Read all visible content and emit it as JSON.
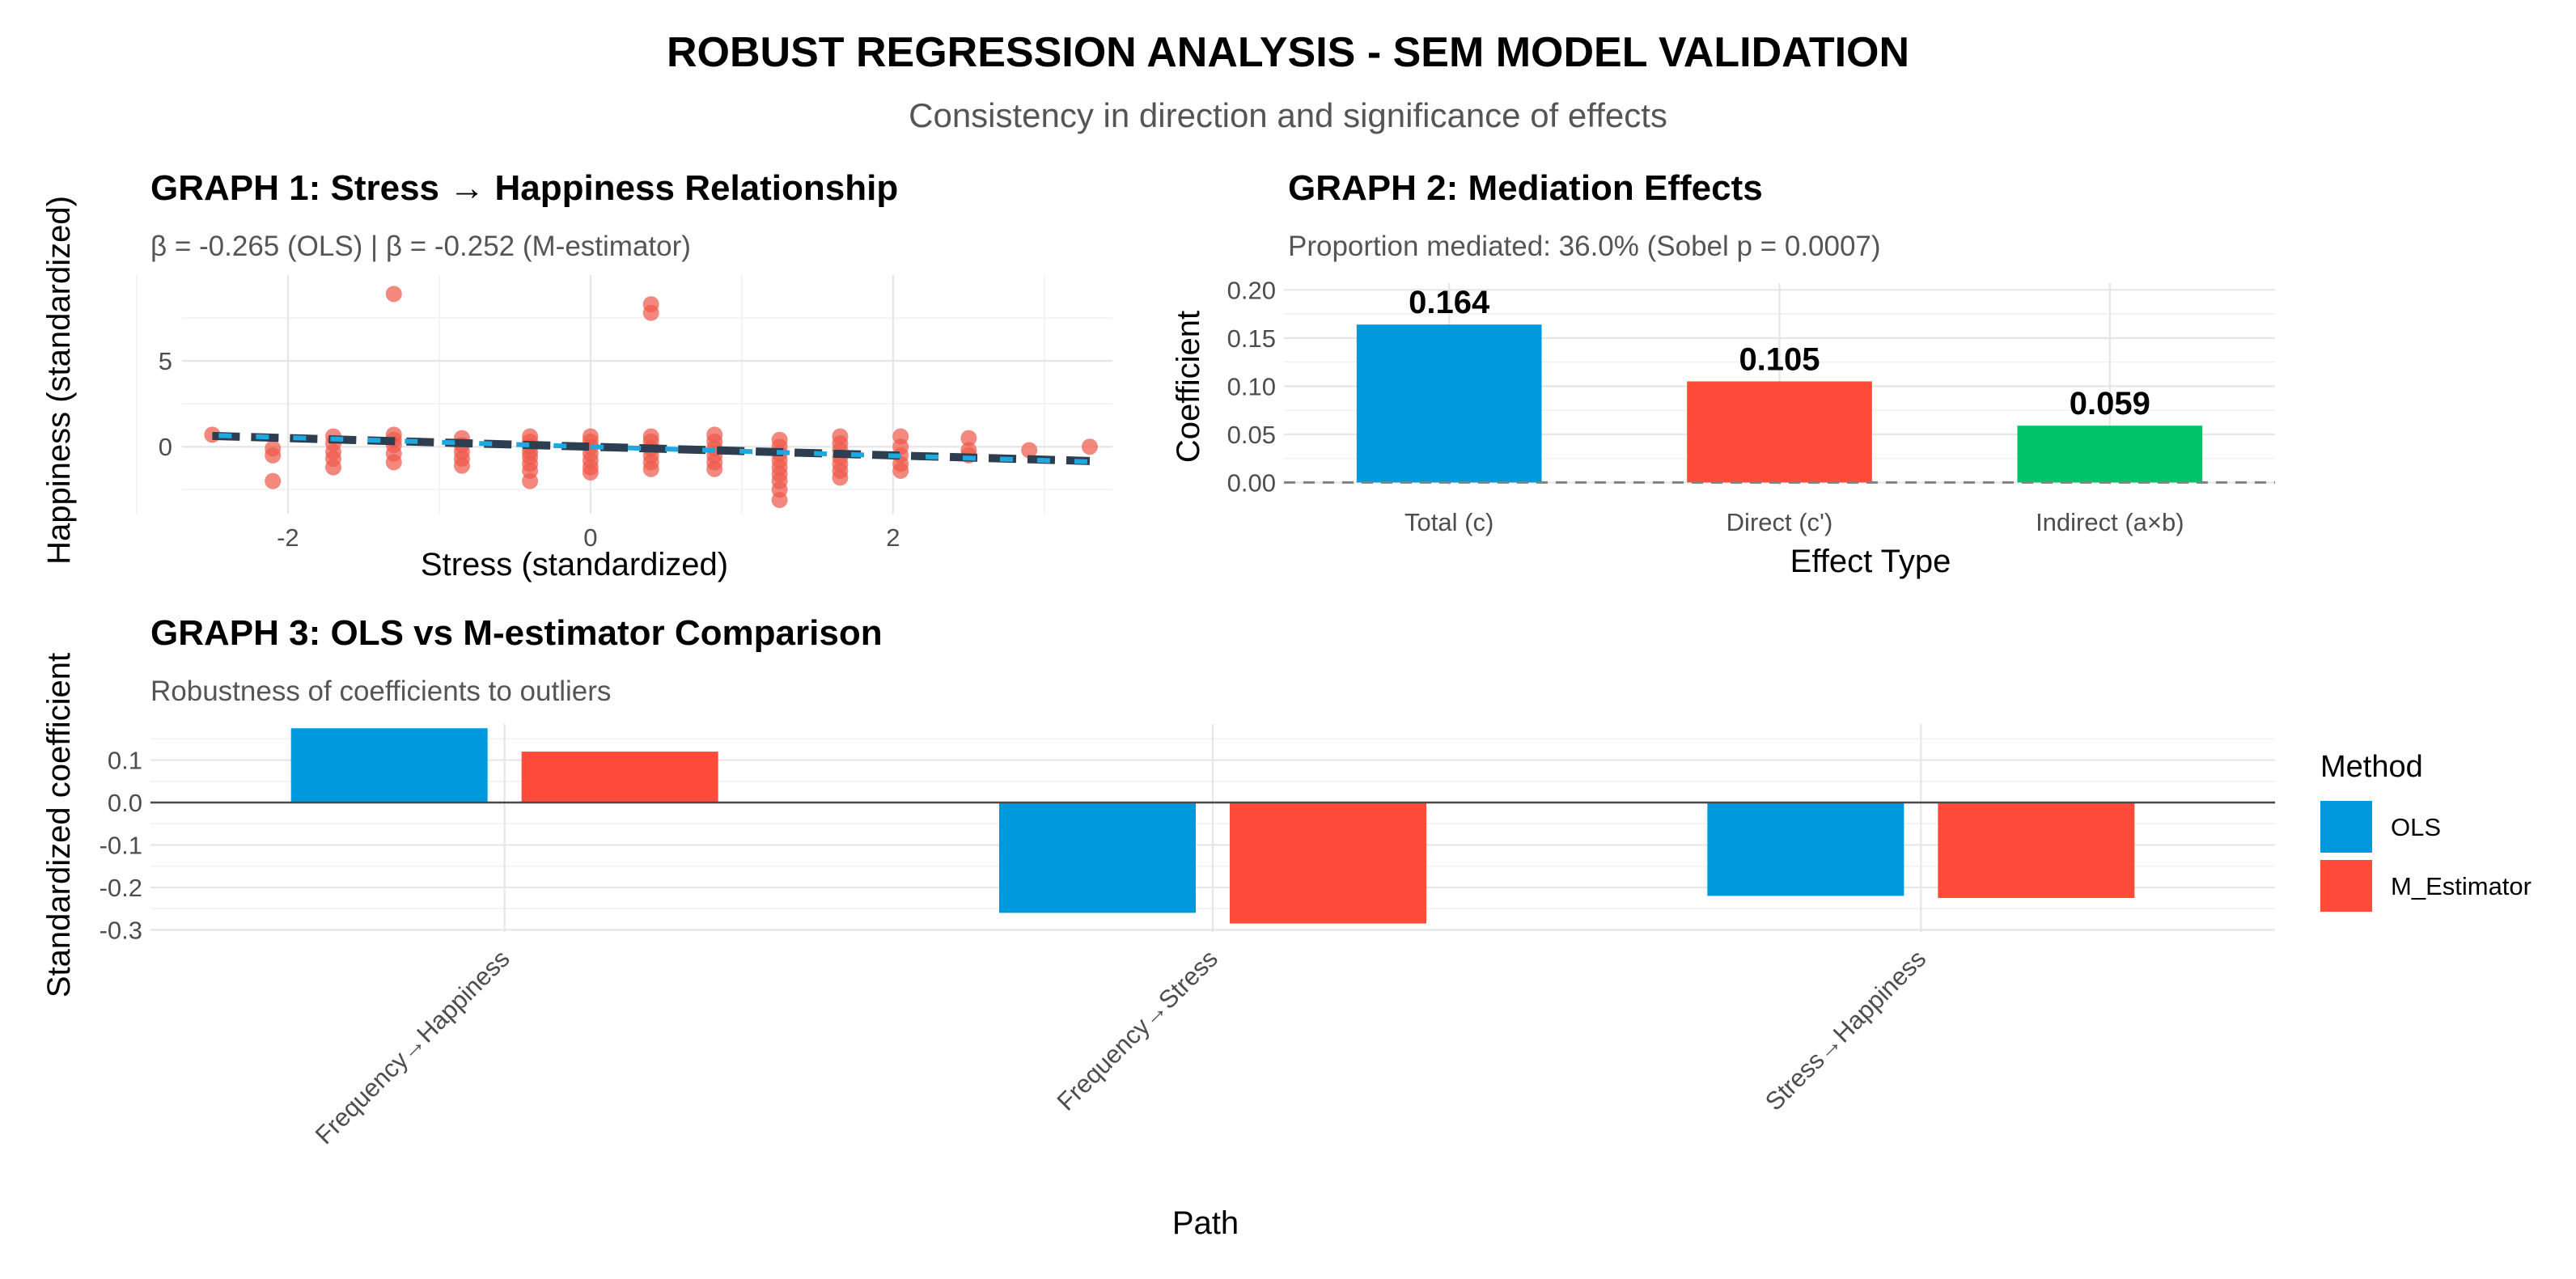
{
  "title": "ROBUST REGRESSION ANALYSIS - SEM MODEL VALIDATION",
  "subtitle": "Consistency in direction and significance of effects",
  "colors": {
    "ols": "#0099DD",
    "m_estimator": "#FF4B3A",
    "indirect": "#00C46A",
    "points": "#EE5A4C",
    "fit_dark": "#2C3E50",
    "fit_light": "#1FA8E0"
  },
  "chart_data": [
    {
      "type": "scatter",
      "title": "GRAPH 1: Stress → Happiness Relationship",
      "subtitle": "β = -0.265 (OLS) | β = -0.252 (M-estimator)",
      "xlabel": "Stress (standardized)",
      "ylabel": "Happiness (standardized)",
      "xlim": [
        -2.7,
        3.45
      ],
      "ylim": [
        -3.9,
        10.0
      ],
      "xticks": [
        -2,
        0,
        2
      ],
      "yticks": [
        0,
        5
      ],
      "fits": [
        {
          "name": "OLS",
          "slope": -0.265,
          "intercept": 0
        },
        {
          "name": "M-estimator",
          "slope": -0.252,
          "intercept": 0
        }
      ],
      "points": [
        [
          -2.5,
          0.7
        ],
        [
          -2.1,
          -0.1
        ],
        [
          -2.1,
          -0.5
        ],
        [
          -2.1,
          -2.0
        ],
        [
          -1.7,
          0.6
        ],
        [
          -1.7,
          0.2
        ],
        [
          -1.7,
          -0.3
        ],
        [
          -1.7,
          -0.7
        ],
        [
          -1.7,
          -1.2
        ],
        [
          -1.3,
          8.9
        ],
        [
          -1.3,
          0.7
        ],
        [
          -1.3,
          0.4
        ],
        [
          -1.3,
          0.1
        ],
        [
          -1.3,
          -0.4
        ],
        [
          -1.3,
          -0.9
        ],
        [
          -0.85,
          0.5
        ],
        [
          -0.85,
          0.1
        ],
        [
          -0.85,
          -0.3
        ],
        [
          -0.85,
          -0.7
        ],
        [
          -0.85,
          -1.1
        ],
        [
          -0.4,
          0.6
        ],
        [
          -0.4,
          0.3
        ],
        [
          -0.4,
          0.0
        ],
        [
          -0.4,
          -0.3
        ],
        [
          -0.4,
          -0.6
        ],
        [
          -0.4,
          -1.0
        ],
        [
          -0.4,
          -1.4
        ],
        [
          -0.4,
          -2.0
        ],
        [
          0.0,
          0.6
        ],
        [
          0.0,
          0.3
        ],
        [
          0.0,
          0.0
        ],
        [
          0.0,
          -0.4
        ],
        [
          0.0,
          -0.8
        ],
        [
          0.0,
          -1.2
        ],
        [
          0.0,
          -1.5
        ],
        [
          0.4,
          8.3
        ],
        [
          0.4,
          7.8
        ],
        [
          0.4,
          0.6
        ],
        [
          0.4,
          0.3
        ],
        [
          0.4,
          -0.1
        ],
        [
          0.4,
          -0.5
        ],
        [
          0.4,
          -0.9
        ],
        [
          0.4,
          -1.3
        ],
        [
          0.82,
          0.7
        ],
        [
          0.82,
          0.3
        ],
        [
          0.82,
          -0.1
        ],
        [
          0.82,
          -0.5
        ],
        [
          0.82,
          -0.9
        ],
        [
          0.82,
          -1.3
        ],
        [
          1.25,
          0.4
        ],
        [
          1.25,
          0.0
        ],
        [
          1.25,
          -0.4
        ],
        [
          1.25,
          -0.8
        ],
        [
          1.25,
          -1.2
        ],
        [
          1.25,
          -1.6
        ],
        [
          1.25,
          -2.0
        ],
        [
          1.25,
          -2.5
        ],
        [
          1.25,
          -3.1
        ],
        [
          1.65,
          0.6
        ],
        [
          1.65,
          0.2
        ],
        [
          1.65,
          -0.2
        ],
        [
          1.65,
          -0.6
        ],
        [
          1.65,
          -1.0
        ],
        [
          1.65,
          -1.4
        ],
        [
          1.65,
          -1.8
        ],
        [
          2.05,
          0.6
        ],
        [
          2.05,
          0.0
        ],
        [
          2.05,
          -0.5
        ],
        [
          2.05,
          -1.0
        ],
        [
          2.05,
          -1.4
        ],
        [
          2.5,
          0.5
        ],
        [
          2.5,
          -0.2
        ],
        [
          2.5,
          -0.5
        ],
        [
          2.9,
          -0.2
        ],
        [
          3.3,
          0.0
        ]
      ]
    },
    {
      "type": "bar",
      "title": "GRAPH 2: Mediation Effects",
      "subtitle": "Proportion mediated: 36.0% (Sobel p = 0.0007)",
      "xlabel": "Effect Type",
      "ylabel": "Coefficient",
      "ylim": [
        -0.003,
        0.207
      ],
      "yticks": [
        "0.00",
        "0.05",
        "0.10",
        "0.15",
        "0.20"
      ],
      "categories": [
        "Total (c)",
        "Direct (c')",
        "Indirect (a×b)"
      ],
      "values": [
        0.164,
        0.105,
        0.059
      ],
      "labels": [
        "0.164",
        "0.105",
        "0.059"
      ],
      "reference_line": 0
    },
    {
      "type": "bar",
      "title": "GRAPH 3: OLS vs M-estimator Comparison",
      "subtitle": "Robustness of coefficients to outliers",
      "xlabel": "Path",
      "ylabel": "Standardized coefficient",
      "ylim": [
        -0.305,
        0.185
      ],
      "yticks": [
        "0.1",
        "0.0",
        "-0.1",
        "-0.2",
        "-0.3"
      ],
      "categories": [
        "Frequency→Happiness",
        "Frequency→Stress",
        "Stress→Happiness"
      ],
      "series": [
        {
          "name": "OLS",
          "values": [
            0.175,
            -0.26,
            -0.22
          ]
        },
        {
          "name": "M_Estimator",
          "values": [
            0.12,
            -0.285,
            -0.225
          ]
        }
      ],
      "legend_title": "Method",
      "legend_position": "right"
    }
  ]
}
